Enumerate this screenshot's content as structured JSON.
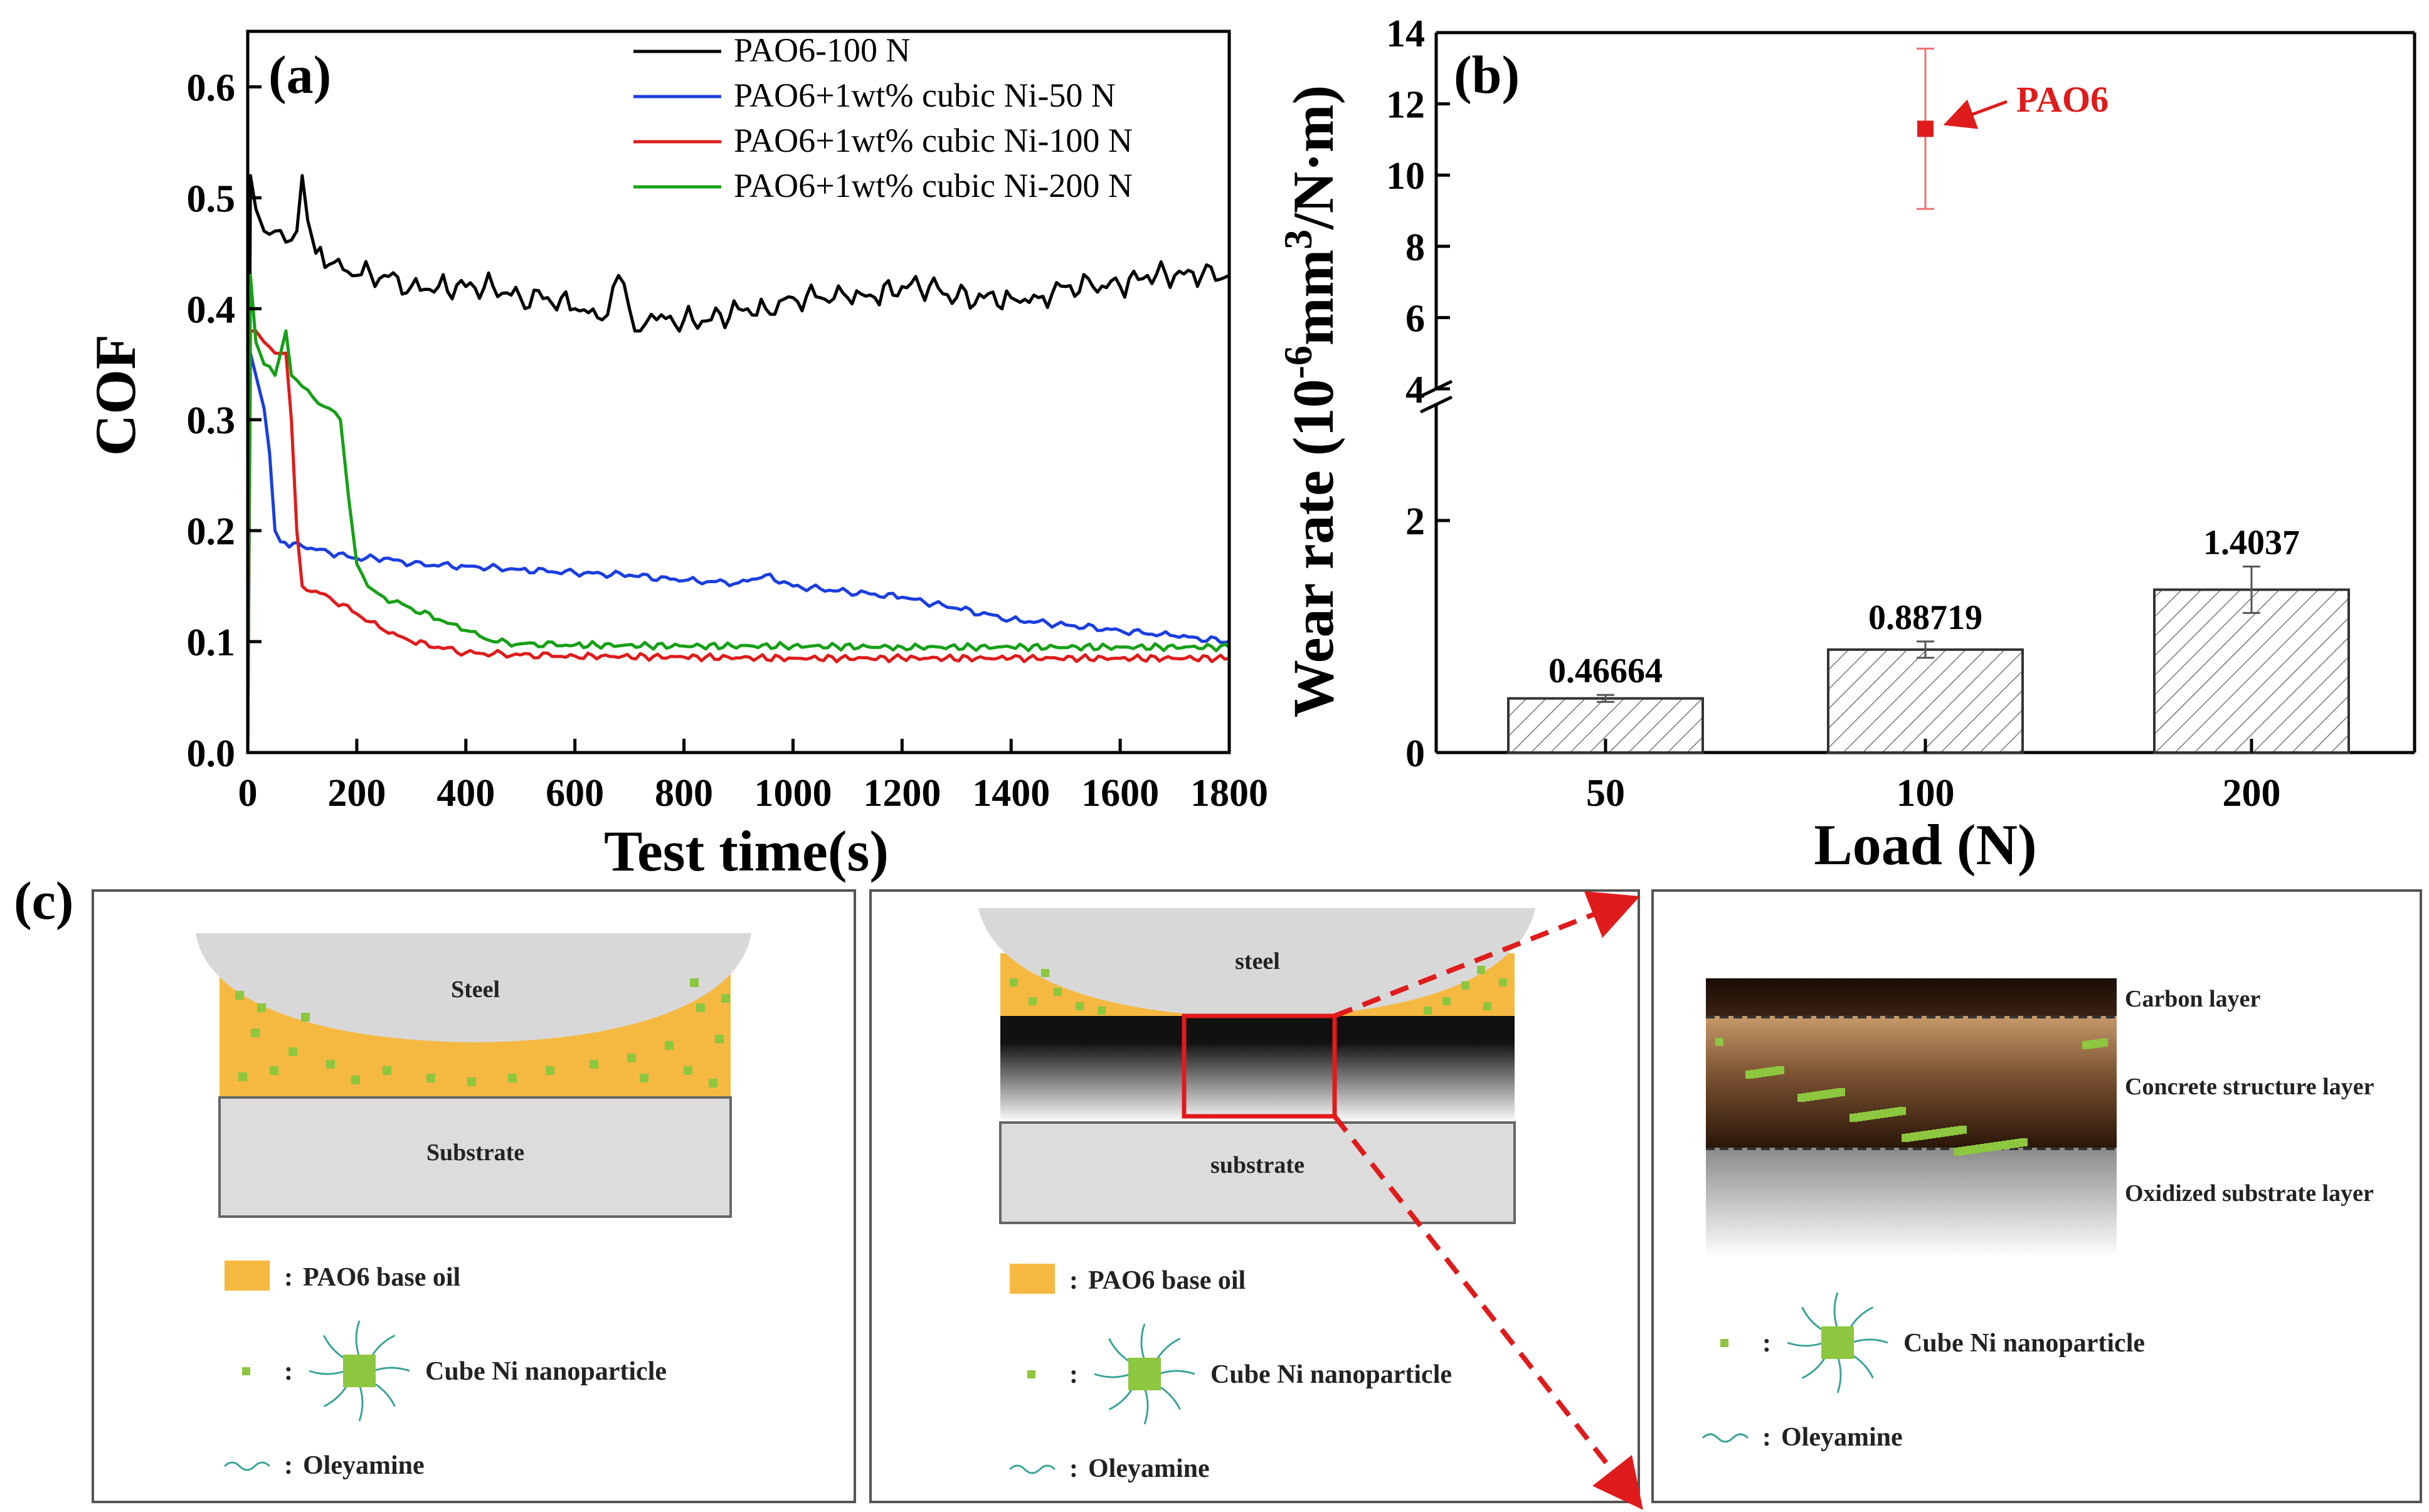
{
  "panel_labels": {
    "a": "(a)",
    "b": "(b)",
    "c": "(c)"
  },
  "chart_data": [
    {
      "type": "line",
      "panel": "(a)",
      "xlabel": "Test time(s)",
      "ylabel": "COF",
      "xlim": [
        0,
        1800
      ],
      "ylim": [
        0,
        0.65
      ],
      "xticks": [
        0,
        200,
        400,
        600,
        800,
        1000,
        1200,
        1400,
        1600,
        1800
      ],
      "xtick_labels": [
        "0",
        "200",
        "400",
        "600",
        "800",
        "1000",
        "1200",
        "1400",
        "1600",
        "1800"
      ],
      "yticks": [
        0.0,
        0.1,
        0.2,
        0.3,
        0.4,
        0.5,
        0.6
      ],
      "ytick_labels": [
        "0.0",
        "0.1",
        "0.2",
        "0.3",
        "0.4",
        "0.5",
        "0.6"
      ],
      "legend_position": "top-right",
      "series": [
        {
          "name": "PAO6-100 N",
          "color": "#000000",
          "x": [
            0,
            5,
            15,
            30,
            50,
            70,
            90,
            100,
            110,
            125,
            150,
            200,
            250,
            300,
            350,
            400,
            450,
            500,
            550,
            600,
            650,
            680,
            700,
            720,
            750,
            800,
            850,
            900,
            950,
            1000,
            1050,
            1100,
            1150,
            1200,
            1250,
            1300,
            1350,
            1400,
            1450,
            1500,
            1550,
            1600,
            1650,
            1700,
            1750,
            1800
          ],
          "y": [
            0.0,
            0.52,
            0.49,
            0.47,
            0.47,
            0.46,
            0.47,
            0.52,
            0.48,
            0.45,
            0.44,
            0.43,
            0.43,
            0.42,
            0.42,
            0.42,
            0.42,
            0.41,
            0.41,
            0.4,
            0.39,
            0.43,
            0.4,
            0.38,
            0.39,
            0.39,
            0.39,
            0.4,
            0.4,
            0.41,
            0.41,
            0.41,
            0.41,
            0.42,
            0.42,
            0.41,
            0.41,
            0.41,
            0.41,
            0.42,
            0.42,
            0.42,
            0.43,
            0.43,
            0.43,
            0.43
          ]
        },
        {
          "name": "PAO6+1wt% cubic Ni-50 N",
          "color": "#1a3ee0",
          "x": [
            0,
            5,
            15,
            30,
            40,
            50,
            60,
            100,
            150,
            200,
            250,
            300,
            400,
            500,
            600,
            700,
            800,
            900,
            950,
            1000,
            1100,
            1200,
            1300,
            1400,
            1500,
            1600,
            1700,
            1800
          ],
          "y": [
            0.0,
            0.36,
            0.34,
            0.31,
            0.27,
            0.2,
            0.19,
            0.186,
            0.18,
            0.175,
            0.175,
            0.17,
            0.168,
            0.165,
            0.162,
            0.16,
            0.155,
            0.153,
            0.16,
            0.15,
            0.145,
            0.14,
            0.13,
            0.12,
            0.115,
            0.11,
            0.105,
            0.1
          ]
        },
        {
          "name": "PAO6+1wt% cubic Ni-100 N",
          "color": "#e01b1b",
          "x": [
            0,
            5,
            15,
            30,
            50,
            70,
            80,
            90,
            100,
            150,
            200,
            250,
            300,
            350,
            400,
            500,
            600,
            800,
            1000,
            1200,
            1400,
            1600,
            1800
          ],
          "y": [
            0.0,
            0.38,
            0.38,
            0.37,
            0.36,
            0.36,
            0.3,
            0.2,
            0.15,
            0.14,
            0.125,
            0.11,
            0.1,
            0.095,
            0.09,
            0.088,
            0.087,
            0.086,
            0.085,
            0.085,
            0.085,
            0.085,
            0.085
          ]
        },
        {
          "name": "PAO6+1wt% cubic Ni-200 N",
          "color": "#16a016",
          "x": [
            0,
            5,
            15,
            30,
            50,
            70,
            80,
            100,
            120,
            150,
            170,
            185,
            200,
            220,
            250,
            300,
            350,
            400,
            450,
            500,
            600,
            800,
            1000,
            1200,
            1400,
            1600,
            1800
          ],
          "y": [
            0.0,
            0.43,
            0.37,
            0.35,
            0.34,
            0.38,
            0.34,
            0.33,
            0.32,
            0.31,
            0.3,
            0.23,
            0.17,
            0.15,
            0.14,
            0.13,
            0.12,
            0.11,
            0.1,
            0.098,
            0.097,
            0.096,
            0.096,
            0.095,
            0.095,
            0.095,
            0.095
          ]
        }
      ]
    },
    {
      "type": "bar",
      "panel": "(b)",
      "xlabel": "Load (N)",
      "ylabel": "Wear rate (10-6mm3/N·m)",
      "ylabel_parts": {
        "base": "Wear rate (10",
        "exp1": "-6",
        "mid": "mm",
        "exp2": "3",
        "tail": "/N·m)"
      },
      "categories": [
        "50",
        "100",
        "200"
      ],
      "values": [
        0.46664,
        0.88719,
        1.4037
      ],
      "value_labels": [
        "0.46664",
        "0.88719",
        "1.4037"
      ],
      "error_bars": [
        0.03,
        0.07,
        0.2
      ],
      "ylim_lower": [
        0,
        3
      ],
      "ylim_upper": [
        4,
        14
      ],
      "yticks_lower": [
        "0",
        "2"
      ],
      "yticks_upper": [
        "4",
        "6",
        "8",
        "10",
        "12",
        "14"
      ],
      "broken_axis": true,
      "reference_point": {
        "label": "PAO6",
        "value": 11.3,
        "error": 2.25,
        "color": "#e01b1b"
      }
    }
  ],
  "diagram": {
    "panel1": {
      "top_label": "Steel",
      "bottom_label": "Substrate",
      "legend": [
        {
          "symbol": "oil-swatch",
          "sep": ":",
          "text": "PAO6 base oil"
        },
        {
          "symbol": "particle",
          "sep": ":",
          "text": "Cube Ni nanoparticle"
        },
        {
          "symbol": "oleyamine",
          "sep": ":",
          "text": "Oleyamine"
        }
      ]
    },
    "panel2": {
      "top_label": "steel",
      "bottom_label": "substrate",
      "legend": [
        {
          "symbol": "oil-swatch",
          "sep": ":",
          "text": "PAO6 base oil"
        },
        {
          "symbol": "particle",
          "sep": ":",
          "text": "Cube Ni nanoparticle"
        },
        {
          "symbol": "oleyamine",
          "sep": ":",
          "text": "Oleyamine"
        }
      ]
    },
    "panel3": {
      "layers": [
        "Carbon layer",
        "Concrete structure layer",
        "Oxidized substrate layer"
      ],
      "legend": [
        {
          "symbol": "particle",
          "sep": ":",
          "text": "Cube Ni nanoparticle"
        },
        {
          "symbol": "oleyamine",
          "sep": ":",
          "text": "Oleyamine"
        }
      ]
    },
    "colors": {
      "oil": "#f5b942",
      "particle": "#8dc63f",
      "steel": "#d8d8d8",
      "substrate": "#dcdcdc",
      "highlight": "#e01b1b"
    }
  }
}
